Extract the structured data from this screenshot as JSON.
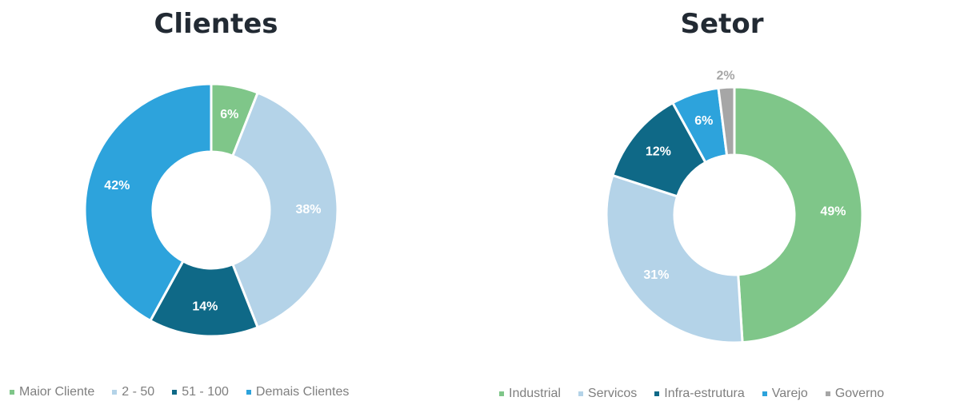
{
  "chart_data": [
    {
      "type": "pie",
      "title": "Clientes",
      "categories": [
        "Maior Cliente",
        "2 - 50",
        "51 - 100",
        "Demais Clientes"
      ],
      "values": [
        6,
        38,
        14,
        42
      ],
      "labels": [
        "6%",
        "38%",
        "14%",
        "42%"
      ],
      "colors": [
        "#7fc689",
        "#b4d3e8",
        "#0f6987",
        "#2da3dc"
      ],
      "label_colors": [
        "#ffffff",
        "#ffffff",
        "#ffffff",
        "#ffffff"
      ],
      "legend_position": "bottom"
    },
    {
      "type": "pie",
      "title": "Setor",
      "categories": [
        "Industrial",
        "Servicos",
        "Infra-estrutura",
        "Varejo",
        "Governo"
      ],
      "values": [
        49,
        31,
        12,
        6,
        2
      ],
      "labels": [
        "49%",
        "31%",
        "12%",
        "6%",
        "2%"
      ],
      "colors": [
        "#7fc689",
        "#b4d3e8",
        "#0f6987",
        "#2da3dc",
        "#a6a6a6"
      ],
      "label_colors": [
        "#ffffff",
        "#ffffff",
        "#ffffff",
        "#ffffff",
        "#a6a6a6"
      ],
      "legend_position": "bottom"
    }
  ]
}
